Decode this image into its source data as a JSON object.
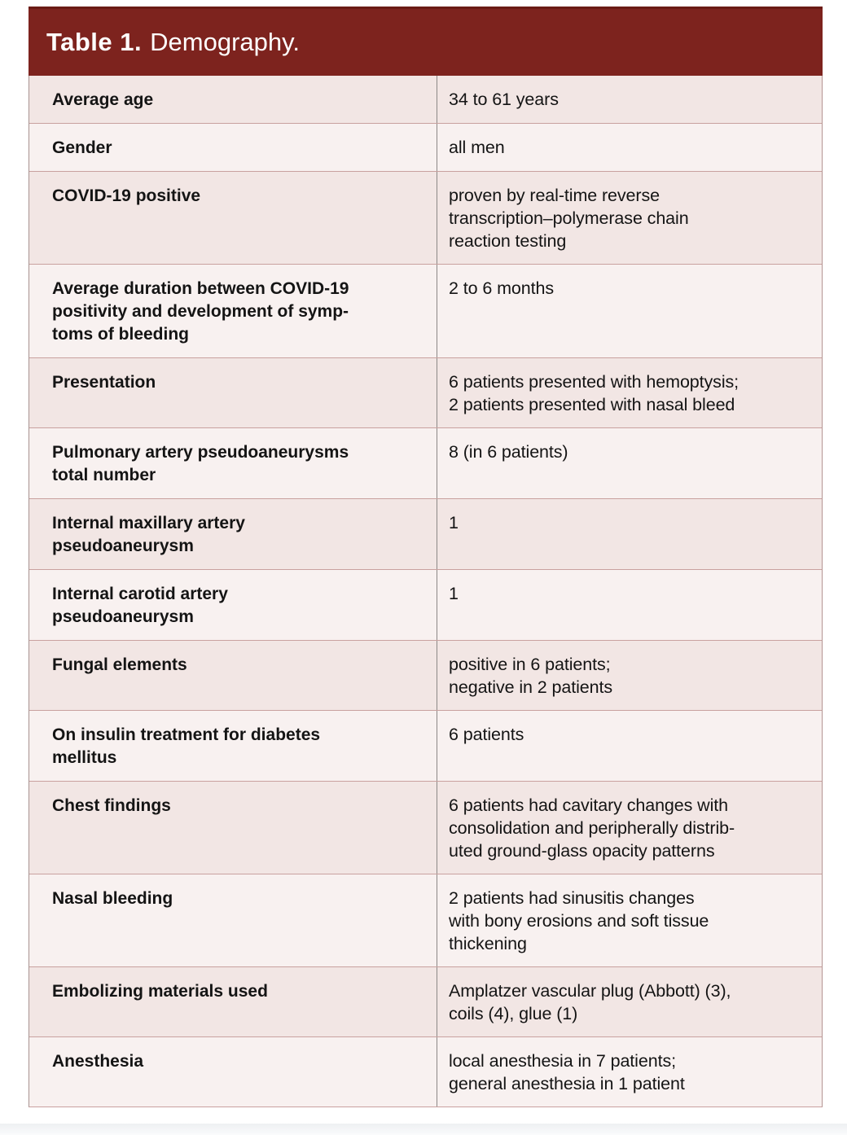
{
  "table": {
    "title_bold": "Table 1.",
    "title_rest": "Demography.",
    "rows": [
      {
        "label": "Average age",
        "value": "34 to 61 years",
        "shade": "dark"
      },
      {
        "label": "Gender",
        "value": "all men",
        "shade": "light"
      },
      {
        "label": "COVID-19 positive",
        "value": "proven by real-time reverse\ntranscription–polymerase chain\nreaction testing",
        "shade": "dark"
      },
      {
        "label": "Average duration between COVID-19\npositivity and development of symp-\ntoms of bleeding",
        "value": "2 to 6 months",
        "shade": "light"
      },
      {
        "label": "Presentation",
        "value": "6 patients presented with hemoptysis;\n2 patients presented with nasal bleed",
        "shade": "dark"
      },
      {
        "label": "Pulmonary artery pseudoaneurysms\ntotal number",
        "value": "8 (in 6 patients)",
        "shade": "light"
      },
      {
        "label": "Internal maxillary artery\npseudoaneurysm",
        "value": "1",
        "shade": "dark"
      },
      {
        "label": "Internal carotid artery\npseudoaneurysm",
        "value": "1",
        "shade": "light"
      },
      {
        "label": "Fungal elements",
        "value": "positive in 6 patients;\nnegative in 2 patients",
        "shade": "dark"
      },
      {
        "label": "On insulin treatment for diabetes\nmellitus",
        "value": "6 patients",
        "shade": "light"
      },
      {
        "label": "Chest findings",
        "value": "6 patients had cavitary changes with\nconsolidation and peripherally distrib-\nuted ground-glass opacity patterns",
        "shade": "dark"
      },
      {
        "label": "Nasal bleeding",
        "value": "2 patients had sinusitis changes\nwith bony erosions and soft tissue\nthickening",
        "shade": "light"
      },
      {
        "label": "Embolizing materials used",
        "value": "Amplatzer vascular plug (Abbott) (3),\ncoils (4), glue (1)",
        "shade": "dark"
      },
      {
        "label": "Anesthesia",
        "value": "local anesthesia in 7 patients;\ngeneral anesthesia in 1 patient",
        "shade": "light"
      }
    ]
  },
  "colors": {
    "header_background": "#7D231E",
    "header_top_border": "#6B1B16",
    "header_text": "#FFFFFF",
    "row_dark": "#F2E6E4",
    "row_light": "#F8F1F0",
    "horizontal_divider": "#C9A19F",
    "vertical_divider": "#8C8886",
    "body_text": "#141414"
  }
}
